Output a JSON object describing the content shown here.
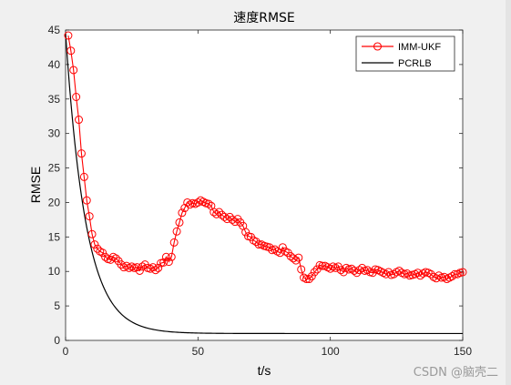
{
  "watermark": "CSDN @脑壳二",
  "colors": {
    "rmse": "#ff0000",
    "pcrlb": "#000000",
    "background": "#f0f0f0",
    "axes_bg": "#ffffff"
  },
  "chart_data": {
    "type": "line",
    "title": "速度RMSE",
    "xlabel": "t/s",
    "ylabel": "RMSE",
    "xlim": [
      0,
      150
    ],
    "ylim": [
      0,
      45
    ],
    "xticks": [
      0,
      50,
      100,
      150
    ],
    "yticks": [
      0,
      5,
      10,
      15,
      20,
      25,
      30,
      35,
      40,
      45
    ],
    "legend_position": "top-right",
    "grid": false,
    "series": [
      {
        "name": "IMM-UKF",
        "color": "#ff0000",
        "marker": "circle",
        "x": [
          1,
          2,
          3,
          4,
          5,
          6,
          7,
          8,
          9,
          10,
          11,
          12,
          13,
          14,
          15,
          16,
          17,
          18,
          19,
          20,
          21,
          22,
          23,
          24,
          25,
          26,
          27,
          28,
          29,
          30,
          31,
          32,
          33,
          34,
          35,
          36,
          37,
          38,
          39,
          40,
          41,
          42,
          43,
          44,
          45,
          46,
          47,
          48,
          49,
          50,
          51,
          52,
          53,
          54,
          55,
          56,
          57,
          58,
          59,
          60,
          61,
          62,
          63,
          64,
          65,
          66,
          67,
          68,
          69,
          70,
          71,
          72,
          73,
          74,
          75,
          76,
          77,
          78,
          79,
          80,
          81,
          82,
          83,
          84,
          85,
          86,
          87,
          88,
          89,
          90,
          91,
          92,
          93,
          94,
          95,
          96,
          97,
          98,
          99,
          100,
          101,
          102,
          103,
          104,
          105,
          106,
          107,
          108,
          109,
          110,
          111,
          112,
          113,
          114,
          115,
          116,
          117,
          118,
          119,
          120,
          121,
          122,
          123,
          124,
          125,
          126,
          127,
          128,
          129,
          130,
          131,
          132,
          133,
          134,
          135,
          136,
          137,
          138,
          139,
          140,
          141,
          142,
          143,
          144,
          145,
          146,
          147,
          148,
          149,
          150
        ],
        "y": [
          44.2,
          42.0,
          39.2,
          35.3,
          32.0,
          27.1,
          23.7,
          20.3,
          18.0,
          15.4,
          13.9,
          13.3,
          12.9,
          12.7,
          12.1,
          11.8,
          11.7,
          12.1,
          11.9,
          11.5,
          11.0,
          10.6,
          10.8,
          10.5,
          10.7,
          10.5,
          10.6,
          10.1,
          10.7,
          11.0,
          10.5,
          10.4,
          10.6,
          10.2,
          10.5,
          11.2,
          11.3,
          12.1,
          11.4,
          12.1,
          14.2,
          15.8,
          17.1,
          18.5,
          19.2,
          20.0,
          19.7,
          19.9,
          19.8,
          20.0,
          20.3,
          20.1,
          19.9,
          19.8,
          19.5,
          18.6,
          18.3,
          18.6,
          18.2,
          17.9,
          17.6,
          17.9,
          17.5,
          17.2,
          17.6,
          17.1,
          16.6,
          15.7,
          15.1,
          15.0,
          14.5,
          14.3,
          13.9,
          13.9,
          13.7,
          13.6,
          13.5,
          13.1,
          13.2,
          12.9,
          12.7,
          13.5,
          12.9,
          12.7,
          12.2,
          11.9,
          11.6,
          12.0,
          10.3,
          9.1,
          8.9,
          8.9,
          9.3,
          9.9,
          10.3,
          10.9,
          10.8,
          10.8,
          10.6,
          10.4,
          10.7,
          10.5,
          10.7,
          10.2,
          9.9,
          10.5,
          10.3,
          10.4,
          10.1,
          9.8,
          10.2,
          10.5,
          10.1,
          10.2,
          9.9,
          9.8,
          10.3,
          10.2,
          10.0,
          9.8,
          9.6,
          9.9,
          9.5,
          9.6,
          9.9,
          10.1,
          9.8,
          9.6,
          9.7,
          9.4,
          9.5,
          9.6,
          9.8,
          9.4,
          9.7,
          9.9,
          9.8,
          9.6,
          9.2,
          9.0,
          9.4,
          9.1,
          9.2,
          8.9,
          9.1,
          9.3,
          9.6,
          9.6,
          9.8,
          9.9
        ]
      },
      {
        "name": "PCRLB",
        "color": "#000000",
        "marker": "none",
        "decay": {
          "start": 44.5,
          "floor": 1.0,
          "rate": 0.13
        }
      }
    ]
  }
}
